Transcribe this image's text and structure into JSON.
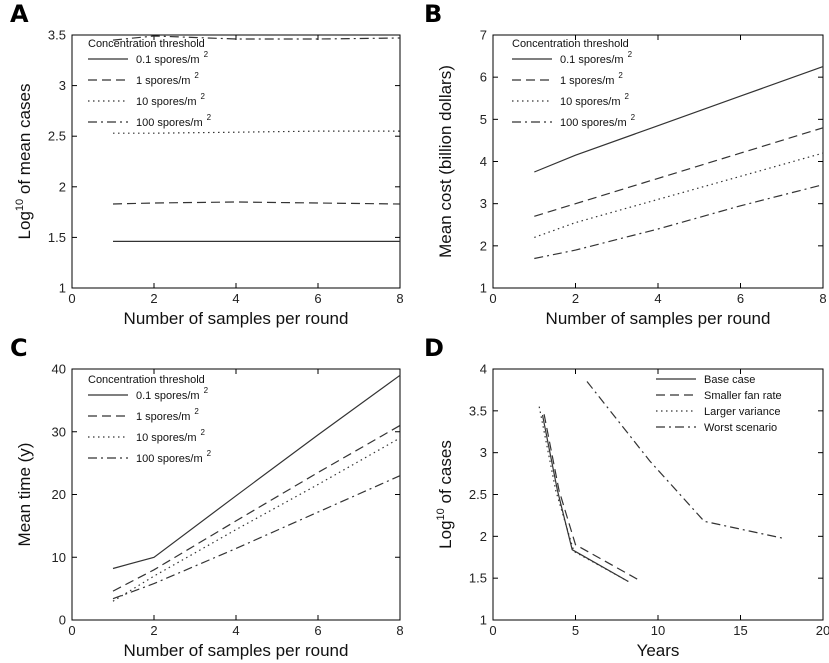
{
  "chart_data": [
    {
      "panel": "A",
      "type": "line",
      "xlabel": "Number of samples per round",
      "ylabel": "Log10 of mean cases",
      "xlim": [
        0,
        8
      ],
      "ylim": [
        1,
        3.5
      ],
      "xticks": [
        0,
        2,
        4,
        6,
        8
      ],
      "yticks": [
        1,
        1.5,
        2,
        2.5,
        3,
        3.5
      ],
      "legend_title": "Concentration threshold",
      "legend_placement": "top-left",
      "x": [
        1,
        2,
        4,
        6,
        8
      ],
      "series": [
        {
          "name": "0.1 spores/m2",
          "dash": "solid",
          "values": [
            1.46,
            1.46,
            1.46,
            1.46,
            1.46
          ]
        },
        {
          "name": "1 spores/m2",
          "dash": "dashed",
          "values": [
            1.83,
            1.84,
            1.85,
            1.84,
            1.83
          ]
        },
        {
          "name": "10 spores/m2",
          "dash": "dotted",
          "values": [
            2.53,
            2.53,
            2.54,
            2.55,
            2.55
          ]
        },
        {
          "name": "100 spores/m2",
          "dash": "dashdot",
          "values": [
            3.45,
            3.49,
            3.46,
            3.46,
            3.47
          ]
        }
      ]
    },
    {
      "panel": "B",
      "type": "line",
      "xlabel": "Number of samples per round",
      "ylabel": "Mean cost (billion dollars)",
      "xlim": [
        0,
        8
      ],
      "ylim": [
        1,
        7
      ],
      "xticks": [
        0,
        2,
        4,
        6,
        8
      ],
      "yticks": [
        1,
        2,
        3,
        4,
        5,
        6,
        7
      ],
      "legend_title": "Concentration threshold",
      "legend_placement": "top-left",
      "x": [
        1,
        2,
        4,
        6,
        8
      ],
      "series": [
        {
          "name": "0.1 spores/m2",
          "dash": "solid",
          "values": [
            3.75,
            4.15,
            4.85,
            5.55,
            6.25
          ]
        },
        {
          "name": "1 spores/m2",
          "dash": "dashed",
          "values": [
            2.7,
            3.0,
            3.6,
            4.2,
            4.8
          ]
        },
        {
          "name": "10 spores/m2",
          "dash": "dotted",
          "values": [
            2.2,
            2.55,
            3.1,
            3.65,
            4.2
          ]
        },
        {
          "name": "100 spores/m2",
          "dash": "dashdot",
          "values": [
            1.7,
            1.9,
            2.4,
            2.95,
            3.45
          ]
        }
      ]
    },
    {
      "panel": "C",
      "type": "line",
      "xlabel": "Number of samples per round",
      "ylabel": "Mean time (y)",
      "xlim": [
        0,
        8
      ],
      "ylim": [
        0,
        40
      ],
      "xticks": [
        0,
        2,
        4,
        6,
        8
      ],
      "yticks": [
        0,
        10,
        20,
        30,
        40
      ],
      "legend_title": "Concentration threshold",
      "legend_placement": "top-left",
      "x": [
        1,
        2,
        4,
        6,
        8
      ],
      "series": [
        {
          "name": "0.1 spores/m2",
          "dash": "solid",
          "values": [
            8.2,
            10,
            19.8,
            29.5,
            39
          ]
        },
        {
          "name": "1 spores/m2",
          "dash": "dashed",
          "values": [
            4.6,
            8.0,
            15.8,
            23.5,
            31
          ]
        },
        {
          "name": "10 spores/m2",
          "dash": "dotted",
          "values": [
            3.0,
            7.0,
            14.4,
            21.6,
            29
          ]
        },
        {
          "name": "100 spores/m2",
          "dash": "dashdot",
          "values": [
            3.4,
            5.8,
            11.4,
            17.2,
            23
          ]
        }
      ]
    },
    {
      "panel": "D",
      "type": "line",
      "xlabel": "Years",
      "ylabel": "Log10 of cases",
      "xlim": [
        0,
        20
      ],
      "ylim": [
        1,
        4
      ],
      "xticks": [
        0,
        5,
        10,
        15,
        20
      ],
      "yticks": [
        1,
        1.5,
        2,
        2.5,
        3,
        3.5,
        4
      ],
      "legend_placement": "top-right",
      "series": [
        {
          "name": "Base case",
          "dash": "solid",
          "points": [
            [
              3.0,
              3.45
            ],
            [
              3.9,
              2.55
            ],
            [
              4.8,
              1.84
            ],
            [
              8.2,
              1.46
            ]
          ]
        },
        {
          "name": "Smaller fan rate",
          "dash": "dashed",
          "points": [
            [
              3.1,
              3.46
            ],
            [
              4.0,
              2.55
            ],
            [
              5.0,
              1.9
            ],
            [
              9.0,
              1.46
            ]
          ]
        },
        {
          "name": "Larger variance",
          "dash": "dotted",
          "points": [
            [
              2.8,
              3.55
            ],
            [
              3.8,
              2.55
            ],
            [
              4.9,
              1.82
            ],
            [
              8.2,
              1.46
            ]
          ]
        },
        {
          "name": "Worst scenario",
          "dash": "dashdot",
          "points": [
            [
              5.7,
              3.85
            ],
            [
              9.5,
              2.9
            ],
            [
              12.8,
              2.18
            ],
            [
              17.5,
              1.98
            ]
          ]
        }
      ]
    }
  ]
}
